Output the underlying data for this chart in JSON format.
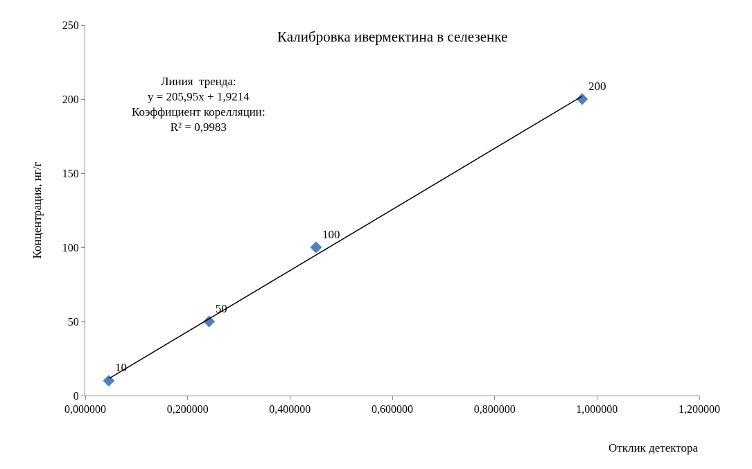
{
  "chart_data": {
    "type": "scatter",
    "title": "Калибровка ивермектина в селезенке",
    "xlabel": "Отклик детектора",
    "ylabel": "Концентрация, нг/г",
    "annotations": [
      "Линия  тренда:\ny = 205,95x + 1,9214\nКоэффициент корелляции:\nR² = 0,9983"
    ],
    "x": [
      0.046,
      0.242,
      0.451,
      0.971
    ],
    "series": [
      {
        "color": "#4f81bd",
        "values": [
          10,
          50,
          100,
          200
        ],
        "value_labels": [
          "10",
          "50",
          "100",
          "200"
        ]
      },
      {
        "type": "line",
        "color": "#000000",
        "x": [
          0.046,
          0.971
        ],
        "values": [
          11.4,
          201.9
        ],
        "marker": "none"
      }
    ],
    "marker": "diamond",
    "xlim": [
      0,
      1.2
    ],
    "xticks": [
      {
        "value": 0,
        "label": "0,000000"
      },
      {
        "value": 0.2,
        "label": "0,200000"
      },
      {
        "value": 0.4,
        "label": "0,400000"
      },
      {
        "value": 0.6,
        "label": "0,600000"
      },
      {
        "value": 0.8,
        "label": "0,800000"
      },
      {
        "value": 1.0,
        "label": "1,000000"
      },
      {
        "value": 1.2,
        "label": "1,200000"
      }
    ],
    "ylim": [
      0,
      250
    ],
    "yticks": [
      0,
      50,
      100,
      150,
      200,
      250
    ]
  }
}
